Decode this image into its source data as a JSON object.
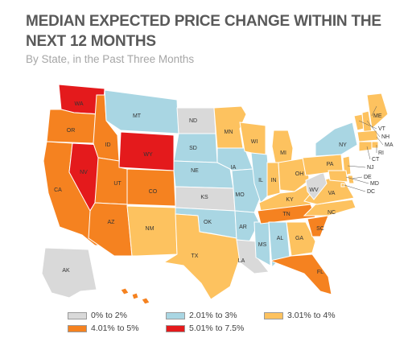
{
  "title": "MEDIAN EXPECTED PRICE CHANGE WITHIN THE NEXT 12 MONTHS",
  "subtitle": "By State, in the Past Three Months",
  "categories": [
    {
      "key": "c1",
      "label": "0% to 2%",
      "color": "#d9d9d9"
    },
    {
      "key": "c2",
      "label": "2.01% to 3%",
      "color": "#a9d6e3"
    },
    {
      "key": "c3",
      "label": "3.01% to 4%",
      "color": "#fdc25f"
    },
    {
      "key": "c4",
      "label": "4.01% to 5%",
      "color": "#f58220"
    },
    {
      "key": "c5",
      "label": "5.01% to 7.5%",
      "color": "#e41a1c"
    }
  ],
  "states": [
    {
      "abbr": "WA",
      "cat": "c5"
    },
    {
      "abbr": "OR",
      "cat": "c4"
    },
    {
      "abbr": "CA",
      "cat": "c4"
    },
    {
      "abbr": "NV",
      "cat": "c5"
    },
    {
      "abbr": "ID",
      "cat": "c4"
    },
    {
      "abbr": "MT",
      "cat": "c2"
    },
    {
      "abbr": "WY",
      "cat": "c5"
    },
    {
      "abbr": "UT",
      "cat": "c4"
    },
    {
      "abbr": "AZ",
      "cat": "c4"
    },
    {
      "abbr": "CO",
      "cat": "c4"
    },
    {
      "abbr": "NM",
      "cat": "c3"
    },
    {
      "abbr": "ND",
      "cat": "c1"
    },
    {
      "abbr": "SD",
      "cat": "c2"
    },
    {
      "abbr": "NE",
      "cat": "c2"
    },
    {
      "abbr": "KS",
      "cat": "c1"
    },
    {
      "abbr": "OK",
      "cat": "c2"
    },
    {
      "abbr": "TX",
      "cat": "c3"
    },
    {
      "abbr": "MN",
      "cat": "c3"
    },
    {
      "abbr": "IA",
      "cat": "c2"
    },
    {
      "abbr": "MO",
      "cat": "c2"
    },
    {
      "abbr": "AR",
      "cat": "c2"
    },
    {
      "abbr": "LA",
      "cat": "c1"
    },
    {
      "abbr": "WI",
      "cat": "c3"
    },
    {
      "abbr": "IL",
      "cat": "c2"
    },
    {
      "abbr": "MS",
      "cat": "c2"
    },
    {
      "abbr": "MI",
      "cat": "c3"
    },
    {
      "abbr": "IN",
      "cat": "c3"
    },
    {
      "abbr": "OH",
      "cat": "c3"
    },
    {
      "abbr": "KY",
      "cat": "c3"
    },
    {
      "abbr": "TN",
      "cat": "c4"
    },
    {
      "abbr": "AL",
      "cat": "c2"
    },
    {
      "abbr": "GA",
      "cat": "c3"
    },
    {
      "abbr": "FL",
      "cat": "c4"
    },
    {
      "abbr": "SC",
      "cat": "c4"
    },
    {
      "abbr": "NC",
      "cat": "c3"
    },
    {
      "abbr": "VA",
      "cat": "c3"
    },
    {
      "abbr": "WV",
      "cat": "c1"
    },
    {
      "abbr": "PA",
      "cat": "c3"
    },
    {
      "abbr": "NY",
      "cat": "c2"
    },
    {
      "abbr": "VT",
      "cat": "c3"
    },
    {
      "abbr": "NH",
      "cat": "c3"
    },
    {
      "abbr": "ME",
      "cat": "c3"
    },
    {
      "abbr": "MA",
      "cat": "c3"
    },
    {
      "abbr": "RI",
      "cat": "c3"
    },
    {
      "abbr": "CT",
      "cat": "c3"
    },
    {
      "abbr": "NJ",
      "cat": "c3"
    },
    {
      "abbr": "DE",
      "cat": "c3"
    },
    {
      "abbr": "MD",
      "cat": "c3"
    },
    {
      "abbr": "DC",
      "cat": "c3"
    },
    {
      "abbr": "AK",
      "cat": "c1"
    },
    {
      "abbr": "HI",
      "cat": "c4"
    }
  ]
}
